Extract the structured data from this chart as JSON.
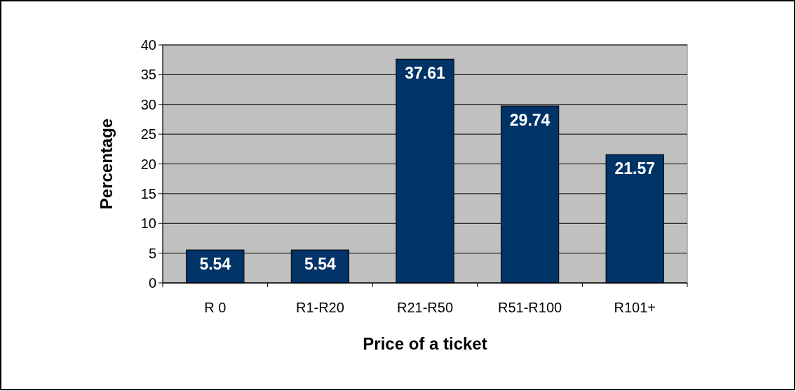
{
  "chart_data": {
    "type": "bar",
    "xlabel": "Price of a ticket",
    "ylabel": "Percentage",
    "categories": [
      "R 0",
      "R1-R20",
      "R21-R50",
      "R51-R100",
      "R101+"
    ],
    "values": [
      5.54,
      5.54,
      37.61,
      29.74,
      21.57
    ],
    "color": "#003366",
    "ylim": [
      0,
      40
    ],
    "yticks": [
      0,
      5,
      10,
      15,
      20,
      25,
      30,
      35,
      40
    ],
    "grid": "y",
    "data_labels": true
  }
}
